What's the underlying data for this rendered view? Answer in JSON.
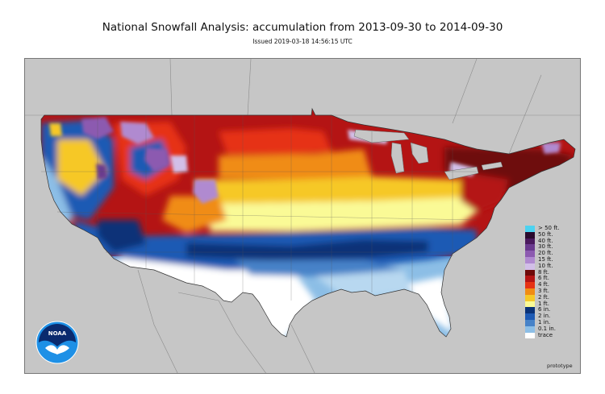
{
  "title": "National Snowfall Analysis: accumulation from 2013-09-30 to 2014-09-30",
  "issued": "Issued 2019-03-18 14:56:15 UTC",
  "logo_text": "NOAA",
  "footer_note": "prototype",
  "colors": {
    "background": "#c6c6c6",
    "land_border": "#777777"
  },
  "legend": {
    "items": [
      {
        "label": "> 50 ft.",
        "color": "#4dd2f0"
      },
      {
        "label": "50 ft.",
        "color": "#2a0a2e"
      },
      {
        "label": "40 ft.",
        "color": "#4a1a5e"
      },
      {
        "label": "30 ft.",
        "color": "#6a3a8e"
      },
      {
        "label": "20 ft.",
        "color": "#8c5ab0"
      },
      {
        "label": "15 ft.",
        "color": "#b08ad0"
      },
      {
        "label": "10 ft.",
        "color": "#d2bfe8"
      },
      {
        "label": "8 ft.",
        "color": "#6e0a0a"
      },
      {
        "label": "6 ft.",
        "color": "#b41414"
      },
      {
        "label": "4 ft.",
        "color": "#e63214"
      },
      {
        "label": "3 ft.",
        "color": "#f08c14"
      },
      {
        "label": "2 ft.",
        "color": "#f6c828"
      },
      {
        "label": "1 ft.",
        "color": "#fafa96"
      },
      {
        "label": "6 in.",
        "color": "#0a3278"
      },
      {
        "label": "2 in.",
        "color": "#1e5ab4"
      },
      {
        "label": "1 in.",
        "color": "#4682c8"
      },
      {
        "label": "0.1 in.",
        "color": "#8cbee6"
      },
      {
        "label": "trace",
        "color": "#ffffff"
      }
    ]
  }
}
